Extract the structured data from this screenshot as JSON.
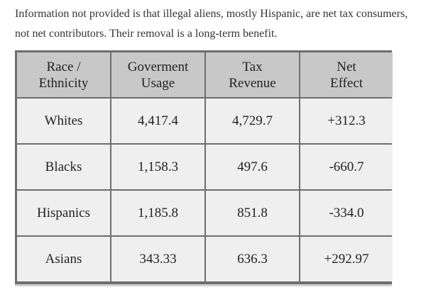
{
  "intro_text": "Information not provided is that illegal aliens, mostly Hispanic, are net tax consumers, not net contributors. Their removal is a long-term benefit.",
  "table": {
    "headers": [
      [
        "Race /",
        "Ethnicity"
      ],
      [
        "Goverment",
        "Usage"
      ],
      [
        "Tax",
        "Revenue"
      ],
      [
        "Net",
        "Effect"
      ]
    ],
    "rows": [
      [
        "Whites",
        "4,417.4",
        "4,729.7",
        "+312.3"
      ],
      [
        "Blacks",
        "1,158.3",
        "497.6",
        "-660.7"
      ],
      [
        "Hispanics",
        "1,185.8",
        "851.8",
        "-334.0"
      ],
      [
        "Asians",
        "343.33",
        "636.3",
        "+292.97"
      ]
    ]
  },
  "colors": {
    "header_bg": "#c8c8c8",
    "cell_bg": "#efefef",
    "grid_line": "#6e6e6e",
    "text": "#222222"
  }
}
